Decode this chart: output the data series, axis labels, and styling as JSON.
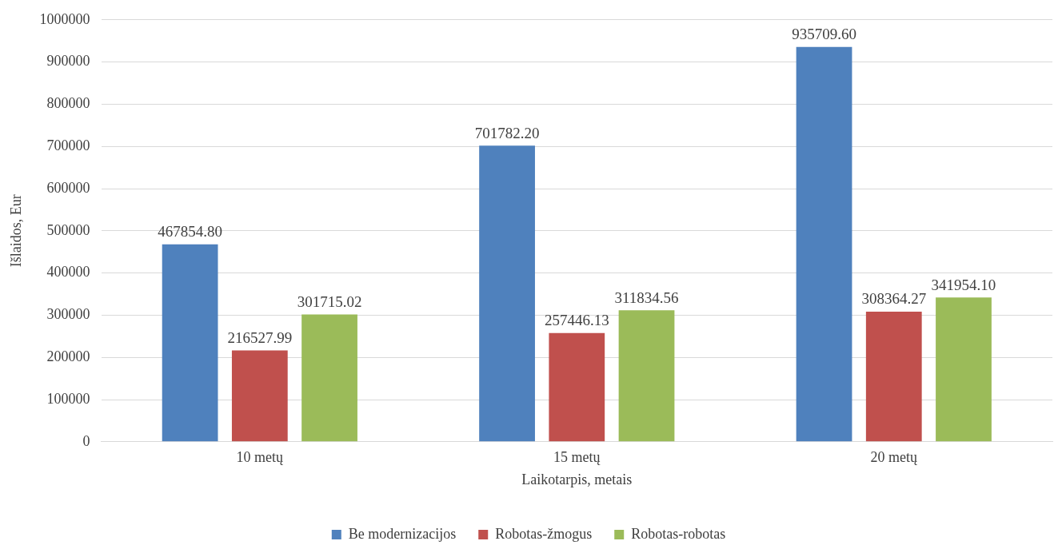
{
  "chart_data": {
    "type": "bar",
    "xlabel": "Laikotarpis, metais",
    "ylabel": "Išlaidos, Eur",
    "categories": [
      "10 metų",
      "15 metų",
      "20 metų"
    ],
    "series": [
      {
        "name": "Be modernizacijos",
        "color": "#4f81bd",
        "values": [
          467854.8,
          701782.2,
          935709.6
        ],
        "value_labels": [
          "467854.80",
          "701782.20",
          "935709.60"
        ]
      },
      {
        "name": "Robotas-žmogus",
        "color": "#c0504d",
        "values": [
          216527.99,
          257446.13,
          308364.27
        ],
        "value_labels": [
          "216527.99",
          "257446.13",
          "308364.27"
        ]
      },
      {
        "name": "Robotas-robotas",
        "color": "#9bbb59",
        "values": [
          301715.02,
          311834.56,
          341954.1
        ],
        "value_labels": [
          "301715.02",
          "311834.56",
          "341954.10"
        ]
      }
    ],
    "ylim": [
      0,
      1000000
    ],
    "yticks": [
      0,
      100000,
      200000,
      300000,
      400000,
      500000,
      600000,
      700000,
      800000,
      900000,
      1000000
    ],
    "grid": "y",
    "legend": "bottom"
  }
}
